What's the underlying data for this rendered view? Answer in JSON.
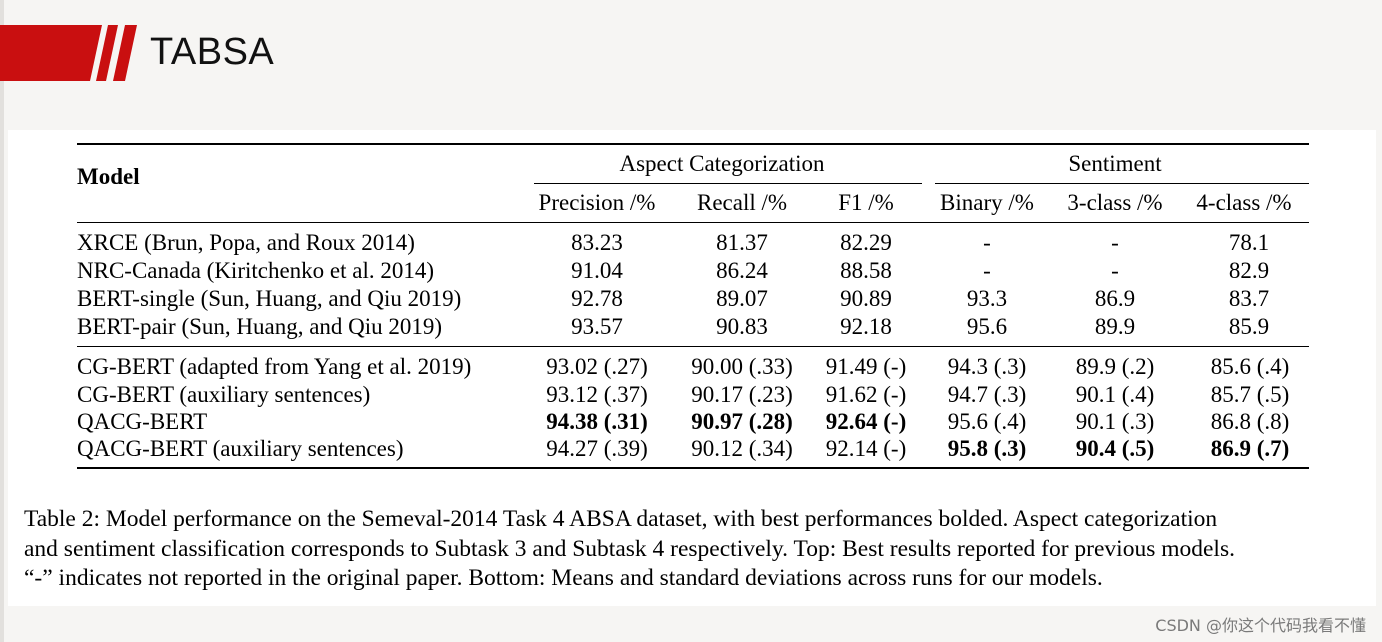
{
  "slide": {
    "title": "TABSA",
    "accent_color": "#c90f10"
  },
  "table": {
    "model_header": "Model",
    "group_aspect": "Aspect Categorization",
    "group_sentiment": "Sentiment",
    "columns": [
      "Precision /%",
      "Recall /%",
      "F1 /%",
      "Binary /%",
      "3-class /%",
      "4-class /%"
    ],
    "top_rows": [
      {
        "model": "XRCE (Brun, Popa, and Roux 2014)",
        "precision": "83.23",
        "recall": "81.37",
        "f1": "82.29",
        "binary": "-",
        "three": "-",
        "four": "78.1"
      },
      {
        "model": "NRC-Canada (Kiritchenko et al. 2014)",
        "precision": "91.04",
        "recall": "86.24",
        "f1": "88.58",
        "binary": "-",
        "three": "-",
        "four": "82.9"
      },
      {
        "model": "BERT-single (Sun, Huang, and Qiu 2019)",
        "precision": "92.78",
        "recall": "89.07",
        "f1": "90.89",
        "binary": "93.3",
        "three": "86.9",
        "four": "83.7"
      },
      {
        "model": "BERT-pair (Sun, Huang, and Qiu 2019)",
        "precision": "93.57",
        "recall": "90.83",
        "f1": "92.18",
        "binary": "95.6",
        "three": "89.9",
        "four": "85.9"
      }
    ],
    "bottom_rows": [
      {
        "model": "CG-BERT (adapted from Yang et al. 2019)",
        "precision": "93.02 (.27)",
        "recall": "90.00 (.33)",
        "f1": "91.49 (-)",
        "binary": "94.3 (.3)",
        "three": "89.9 (.2)",
        "four": "85.6 (.4)"
      },
      {
        "model": "CG-BERT (auxiliary sentences)",
        "precision": "93.12 (.37)",
        "recall": "90.17 (.23)",
        "f1": "91.62 (-)",
        "binary": "94.7 (.3)",
        "three": "90.1 (.4)",
        "four": "85.7 (.5)"
      },
      {
        "model": "QACG-BERT",
        "precision": "94.38 (.31)",
        "recall": "90.97 (.28)",
        "f1": "92.64 (-)",
        "binary": "95.6 (.4)",
        "three": "90.1 (.3)",
        "four": "86.8 (.8)"
      },
      {
        "model": "QACG-BERT (auxiliary sentences)",
        "precision": "94.27 (.39)",
        "recall": "90.12 (.34)",
        "f1": "92.14 (-)",
        "binary": "95.8 (.3)",
        "three": "90.4 (.5)",
        "four": "86.9 (.7)"
      }
    ]
  },
  "caption": {
    "line1": "Table 2: Model performance on the Semeval-2014 Task 4 ABSA dataset, with best performances bolded. Aspect categorization",
    "line2": "and sentiment classification corresponds to Subtask 3 and Subtask 4 respectively. Top: Best results reported for previous models.",
    "line3": "“-” indicates not reported in the original paper. Bottom: Means and standard deviations across runs for our models."
  },
  "watermark": "CSDN @你这个代码我看不懂"
}
